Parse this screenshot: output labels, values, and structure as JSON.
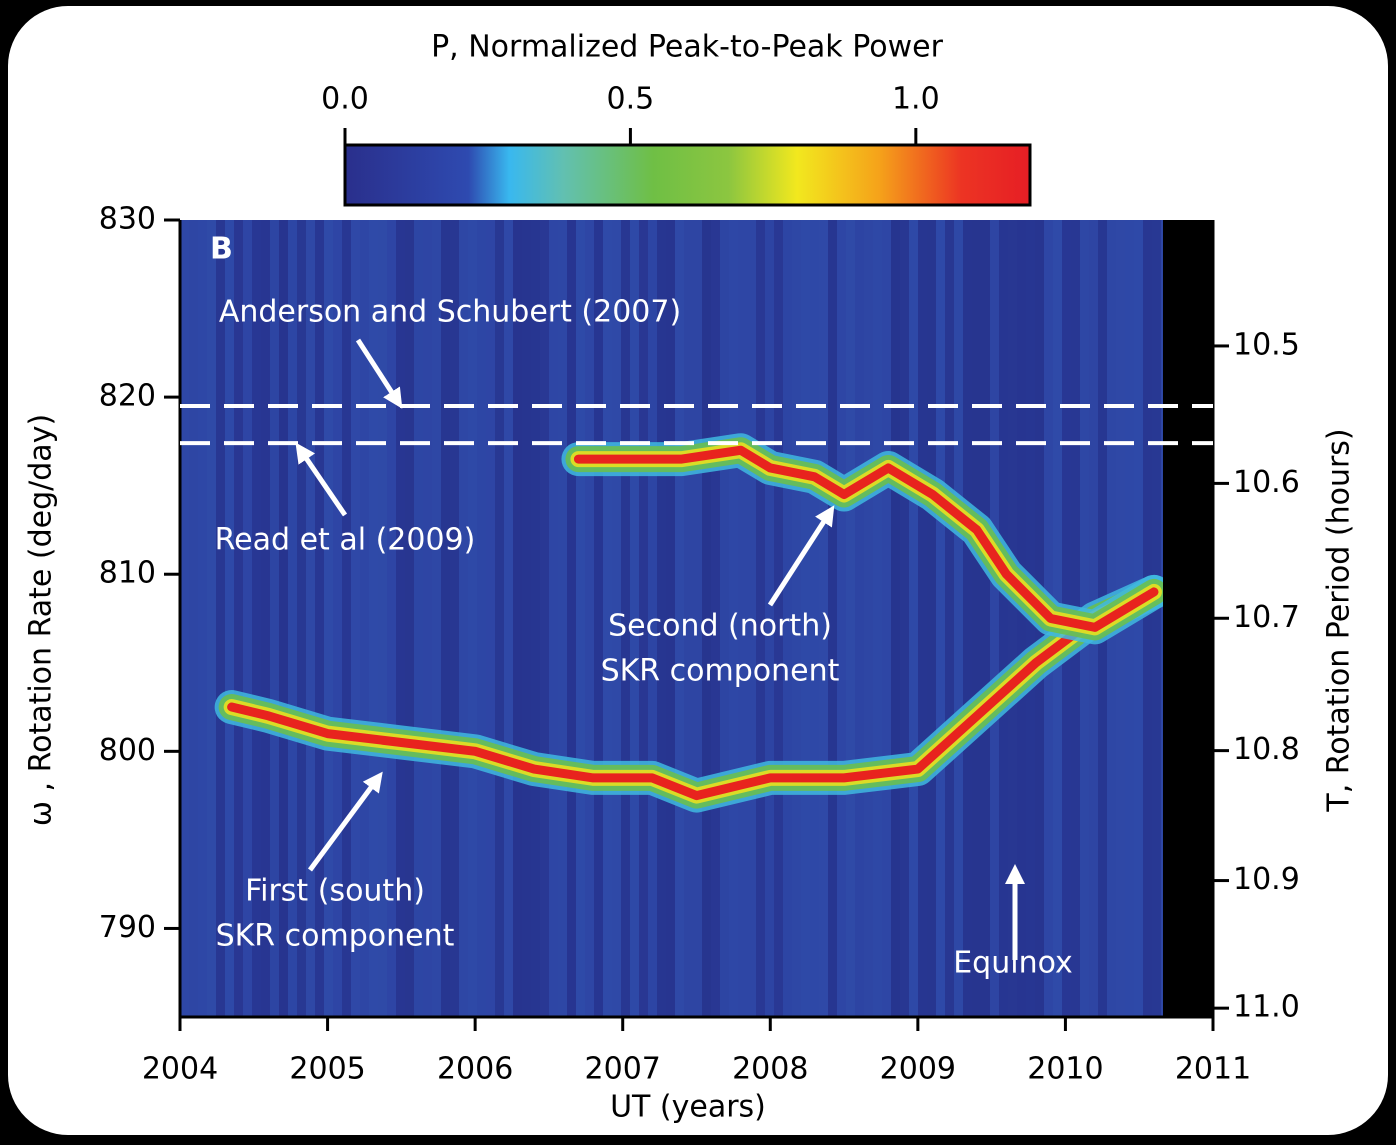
{
  "chart_data": {
    "type": "line",
    "panel_label": "B",
    "xlabel": "UT (years)",
    "ylabel": "ω , Rotation Rate (deg/day)",
    "y2label": "T, Rotation Period (hours)",
    "xlim": [
      2004,
      2011
    ],
    "xticks": [
      2004,
      2005,
      2006,
      2007,
      2008,
      2009,
      2010,
      2011
    ],
    "ylim": [
      785,
      830
    ],
    "yticks": [
      790,
      800,
      810,
      820,
      830
    ],
    "y2scale": "reciprocal",
    "y2lim": [
      11.007,
      10.41
    ],
    "y2ticks": [
      10.5,
      10.6,
      10.7,
      10.8,
      10.9,
      {
        "value": 11.0,
        "label": "11.0"
      }
    ],
    "colorbar": {
      "title": "P, Normalized Peak-to-Peak Power",
      "lim": [
        0,
        1.2
      ],
      "ticks": [
        {
          "value": 0,
          "label": "0.0"
        },
        {
          "value": 0.5,
          "label": "0.5"
        },
        {
          "value": 1,
          "label": "1.0"
        }
      ]
    },
    "reference_lines": [
      {
        "label": "Anderson and Schubert (2007)",
        "value": 819.5
      },
      {
        "label": "Read et al (2009)",
        "value": 817.4
      }
    ],
    "series": [
      {
        "label": [
          "First (south)",
          "SKR component"
        ],
        "color": "#e8231e",
        "x": [
          2004.35,
          2004.6,
          2005,
          2005.5,
          2006,
          2006.4,
          2006.8,
          2007.2,
          2007.5,
          2008,
          2008.5,
          2009,
          2009.4,
          2009.8,
          2010.2,
          2010.6
        ],
        "values": [
          802.5,
          802,
          801,
          800.5,
          800,
          799,
          798.5,
          798.5,
          797.5,
          798.5,
          798.5,
          799,
          802,
          805,
          807.5,
          809
        ]
      },
      {
        "label": [
          "Second (north)",
          "SKR component"
        ],
        "color": "#e8231e",
        "x": [
          2006.7,
          2007,
          2007.4,
          2007.8,
          2008,
          2008.3,
          2008.5,
          2008.8,
          2009.1,
          2009.4,
          2009.6,
          2009.9,
          2010.2,
          2010.6
        ],
        "values": [
          816.5,
          816.5,
          816.5,
          817,
          816,
          815.5,
          814.5,
          816,
          814.5,
          812.5,
          810,
          807.5,
          807,
          809
        ]
      }
    ],
    "annotation": "Equinox"
  }
}
